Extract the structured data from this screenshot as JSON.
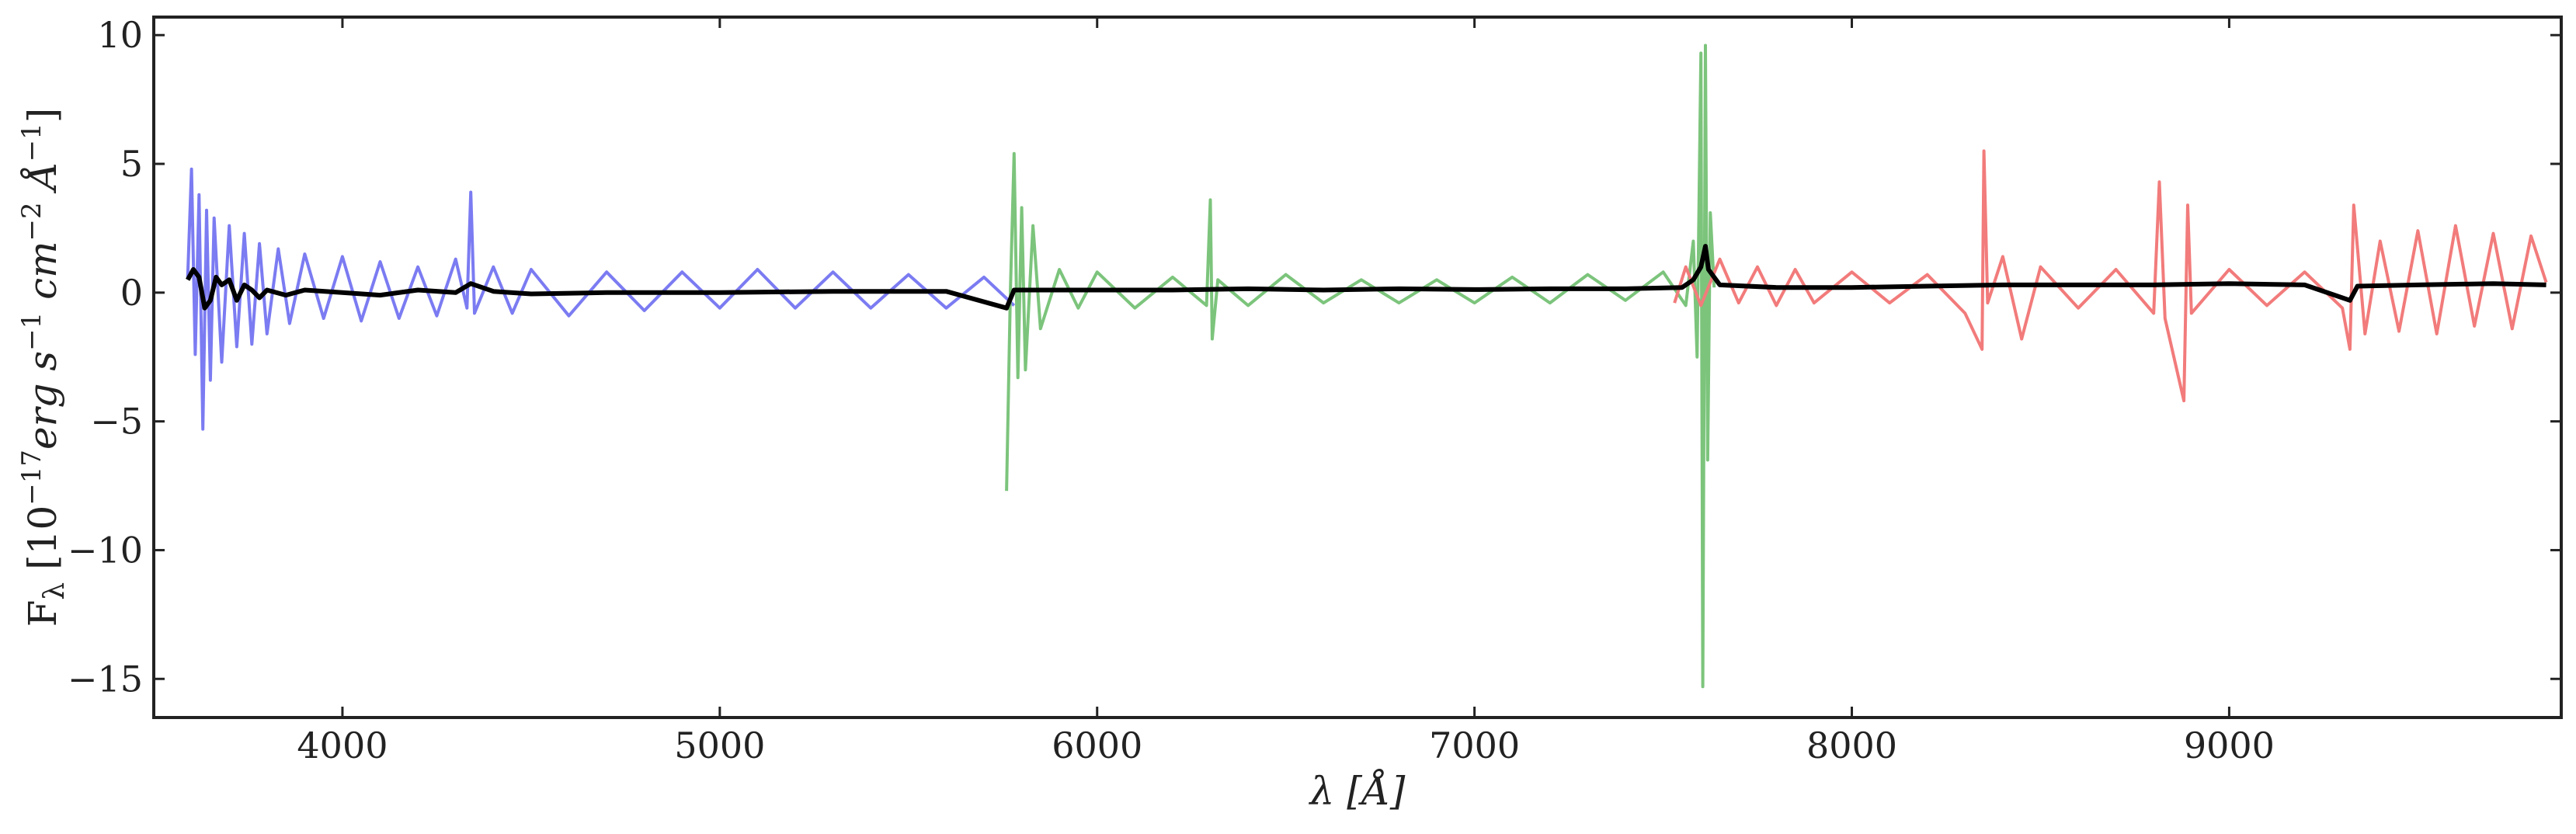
{
  "chart_data": {
    "type": "line",
    "title": "",
    "xlabel": "λ [Å]",
    "ylabel": "F_λ [10^-17 erg s^-1 cm^-2 Å^-1]",
    "ylabel_parts": {
      "f": "F",
      "lambda_sub": "λ",
      "bracket_open": " [10",
      "exp1": "−17",
      "erg": "erg s",
      "exp2": "−1",
      "cm": " cm",
      "exp3": "−2",
      "ang": " Å",
      "exp4": "−1",
      "bracket_close": "]"
    },
    "xlabel_parts": {
      "lambda": "λ",
      "rest": " [Å]"
    },
    "xlim": [
      3500,
      9880
    ],
    "ylim": [
      -16.5,
      10.7
    ],
    "x_ticks": [
      4000,
      5000,
      6000,
      7000,
      8000,
      9000
    ],
    "x_tick_labels": [
      "4000",
      "5000",
      "6000",
      "7000",
      "8000",
      "9000"
    ],
    "y_ticks": [
      10,
      5,
      0,
      -5,
      -10,
      -15
    ],
    "y_tick_labels": [
      "10",
      "5",
      "0",
      "−5",
      "−10",
      "−15"
    ],
    "grid": false,
    "legend": "none",
    "series": [
      {
        "color": "#7b7bf2",
        "points": [
          [
            3590,
            0.6
          ],
          [
            3600,
            4.8
          ],
          [
            3610,
            -2.4
          ],
          [
            3620,
            3.8
          ],
          [
            3630,
            -5.3
          ],
          [
            3640,
            3.2
          ],
          [
            3650,
            -3.4
          ],
          [
            3660,
            2.9
          ],
          [
            3680,
            -2.7
          ],
          [
            3700,
            2.6
          ],
          [
            3720,
            -2.1
          ],
          [
            3740,
            2.3
          ],
          [
            3760,
            -2.0
          ],
          [
            3780,
            1.9
          ],
          [
            3800,
            -1.6
          ],
          [
            3830,
            1.7
          ],
          [
            3860,
            -1.2
          ],
          [
            3900,
            1.5
          ],
          [
            3950,
            -1.0
          ],
          [
            4000,
            1.4
          ],
          [
            4050,
            -1.1
          ],
          [
            4100,
            1.2
          ],
          [
            4150,
            -1.0
          ],
          [
            4200,
            1.0
          ],
          [
            4250,
            -0.9
          ],
          [
            4300,
            1.3
          ],
          [
            4330,
            -0.6
          ],
          [
            4340,
            3.9
          ],
          [
            4350,
            -0.8
          ],
          [
            4400,
            1.0
          ],
          [
            4450,
            -0.8
          ],
          [
            4500,
            0.9
          ],
          [
            4600,
            -0.9
          ],
          [
            4700,
            0.8
          ],
          [
            4800,
            -0.7
          ],
          [
            4900,
            0.8
          ],
          [
            5000,
            -0.6
          ],
          [
            5100,
            0.9
          ],
          [
            5200,
            -0.6
          ],
          [
            5300,
            0.8
          ],
          [
            5400,
            -0.6
          ],
          [
            5500,
            0.7
          ],
          [
            5600,
            -0.6
          ],
          [
            5700,
            0.6
          ],
          [
            5780,
            -0.5
          ]
        ]
      },
      {
        "color": "#7cc47c",
        "points": [
          [
            5760,
            -7.7
          ],
          [
            5770,
            0.0
          ],
          [
            5780,
            5.4
          ],
          [
            5790,
            -3.3
          ],
          [
            5800,
            3.3
          ],
          [
            5810,
            -3.0
          ],
          [
            5830,
            2.6
          ],
          [
            5850,
            -1.4
          ],
          [
            5900,
            0.9
          ],
          [
            5950,
            -0.6
          ],
          [
            6000,
            0.8
          ],
          [
            6100,
            -0.6
          ],
          [
            6200,
            0.6
          ],
          [
            6290,
            -0.5
          ],
          [
            6300,
            3.6
          ],
          [
            6305,
            -1.8
          ],
          [
            6320,
            0.5
          ],
          [
            6400,
            -0.5
          ],
          [
            6500,
            0.7
          ],
          [
            6600,
            -0.4
          ],
          [
            6700,
            0.5
          ],
          [
            6800,
            -0.4
          ],
          [
            6900,
            0.5
          ],
          [
            7000,
            -0.4
          ],
          [
            7100,
            0.6
          ],
          [
            7200,
            -0.4
          ],
          [
            7300,
            0.7
          ],
          [
            7400,
            -0.3
          ],
          [
            7500,
            0.8
          ],
          [
            7560,
            -0.5
          ],
          [
            7580,
            2.0
          ],
          [
            7590,
            -2.5
          ],
          [
            7600,
            9.3
          ],
          [
            7605,
            -15.3
          ],
          [
            7612,
            9.6
          ],
          [
            7618,
            -6.5
          ],
          [
            7625,
            3.1
          ],
          [
            7635,
            0.2
          ]
        ]
      },
      {
        "color": "#f27b7b",
        "points": [
          [
            7530,
            -0.4
          ],
          [
            7560,
            1.0
          ],
          [
            7600,
            -0.5
          ],
          [
            7650,
            1.3
          ],
          [
            7700,
            -0.4
          ],
          [
            7750,
            1.0
          ],
          [
            7800,
            -0.5
          ],
          [
            7850,
            0.9
          ],
          [
            7900,
            -0.4
          ],
          [
            8000,
            0.8
          ],
          [
            8100,
            -0.4
          ],
          [
            8200,
            0.7
          ],
          [
            8300,
            -0.8
          ],
          [
            8345,
            -2.2
          ],
          [
            8350,
            5.5
          ],
          [
            8360,
            -0.4
          ],
          [
            8400,
            1.4
          ],
          [
            8450,
            -1.8
          ],
          [
            8500,
            1.0
          ],
          [
            8600,
            -0.6
          ],
          [
            8700,
            0.9
          ],
          [
            8800,
            -0.8
          ],
          [
            8815,
            4.3
          ],
          [
            8830,
            -1.0
          ],
          [
            8880,
            -4.2
          ],
          [
            8890,
            3.4
          ],
          [
            8900,
            -0.8
          ],
          [
            9000,
            0.9
          ],
          [
            9100,
            -0.5
          ],
          [
            9200,
            0.8
          ],
          [
            9300,
            -0.6
          ],
          [
            9320,
            -2.2
          ],
          [
            9330,
            3.4
          ],
          [
            9360,
            -1.6
          ],
          [
            9400,
            2.0
          ],
          [
            9450,
            -1.5
          ],
          [
            9500,
            2.4
          ],
          [
            9550,
            -1.6
          ],
          [
            9600,
            2.6
          ],
          [
            9650,
            -1.3
          ],
          [
            9700,
            2.3
          ],
          [
            9750,
            -1.4
          ],
          [
            9800,
            2.2
          ],
          [
            9840,
            0.4
          ]
        ]
      },
      {
        "color": "#000000",
        "points": [
          [
            3590,
            0.5
          ],
          [
            3605,
            0.9
          ],
          [
            3620,
            0.6
          ],
          [
            3635,
            -0.6
          ],
          [
            3650,
            -0.3
          ],
          [
            3665,
            0.6
          ],
          [
            3680,
            0.3
          ],
          [
            3700,
            0.5
          ],
          [
            3720,
            -0.3
          ],
          [
            3740,
            0.3
          ],
          [
            3760,
            0.1
          ],
          [
            3780,
            -0.2
          ],
          [
            3800,
            0.1
          ],
          [
            3850,
            -0.1
          ],
          [
            3900,
            0.1
          ],
          [
            4000,
            0.0
          ],
          [
            4100,
            -0.1
          ],
          [
            4200,
            0.1
          ],
          [
            4300,
            0.0
          ],
          [
            4340,
            0.35
          ],
          [
            4400,
            0.05
          ],
          [
            4500,
            -0.05
          ],
          [
            4700,
            0.0
          ],
          [
            5000,
            0.0
          ],
          [
            5300,
            0.05
          ],
          [
            5600,
            0.05
          ],
          [
            5760,
            -0.6
          ],
          [
            5780,
            0.1
          ],
          [
            6000,
            0.1
          ],
          [
            6200,
            0.1
          ],
          [
            6400,
            0.15
          ],
          [
            6600,
            0.1
          ],
          [
            6800,
            0.15
          ],
          [
            7000,
            0.12
          ],
          [
            7200,
            0.15
          ],
          [
            7400,
            0.15
          ],
          [
            7550,
            0.2
          ],
          [
            7580,
            0.5
          ],
          [
            7600,
            1.0
          ],
          [
            7612,
            1.8
          ],
          [
            7620,
            0.9
          ],
          [
            7650,
            0.3
          ],
          [
            7800,
            0.2
          ],
          [
            8000,
            0.2
          ],
          [
            8200,
            0.25
          ],
          [
            8400,
            0.3
          ],
          [
            8600,
            0.3
          ],
          [
            8800,
            0.3
          ],
          [
            9000,
            0.35
          ],
          [
            9200,
            0.3
          ],
          [
            9320,
            -0.3
          ],
          [
            9340,
            0.25
          ],
          [
            9500,
            0.3
          ],
          [
            9700,
            0.35
          ],
          [
            9840,
            0.3
          ]
        ]
      }
    ]
  }
}
